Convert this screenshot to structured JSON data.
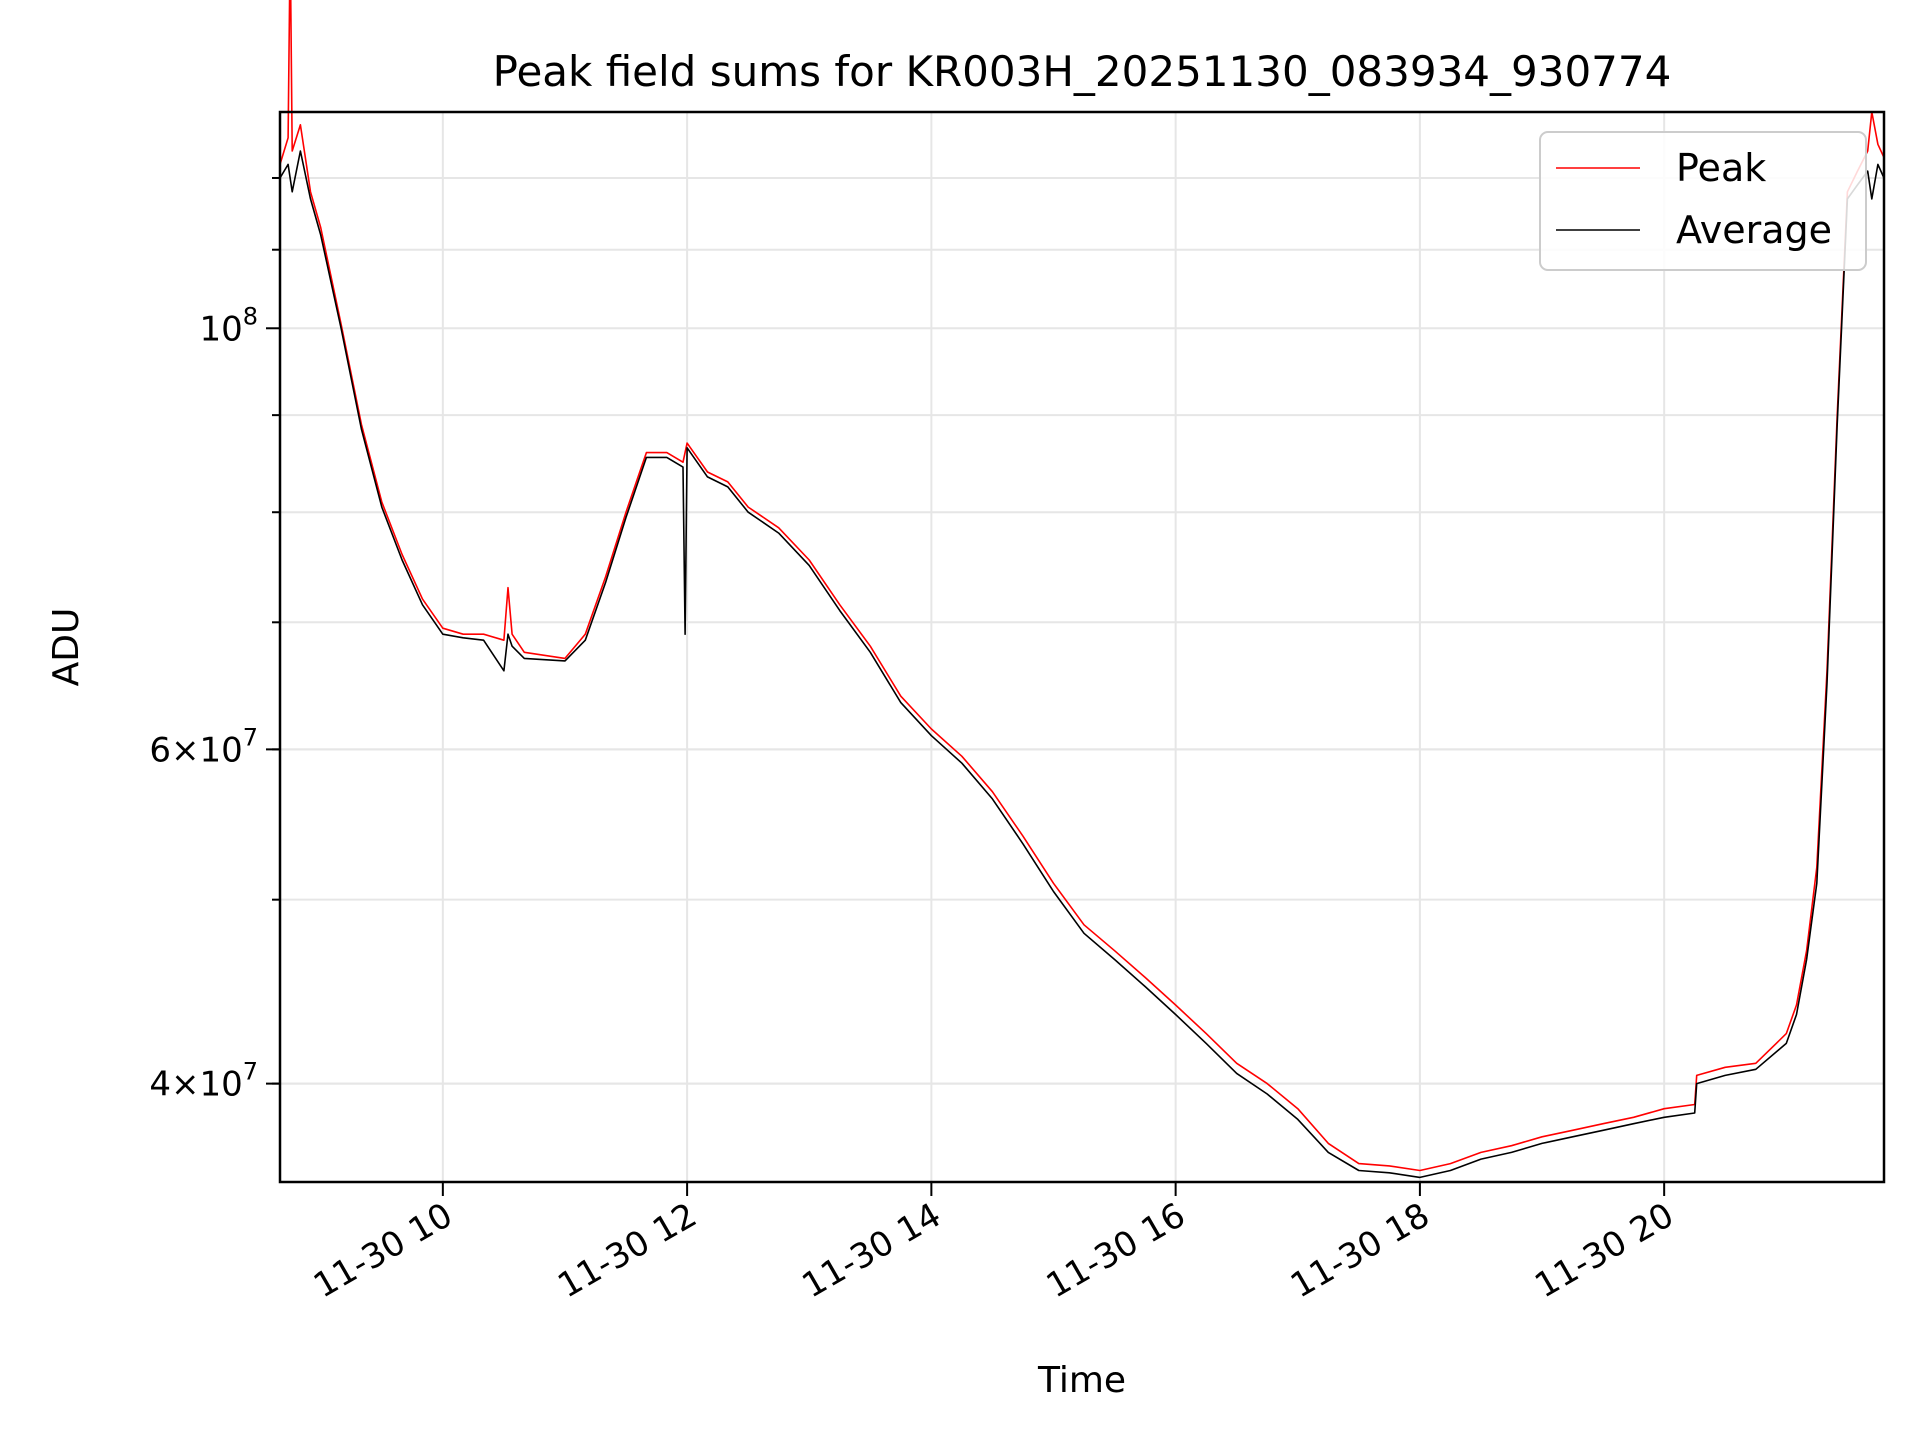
{
  "chart_data": {
    "type": "line",
    "title": "Peak field sums for KR003H_20251130_083934_930774",
    "xlabel": "Time",
    "ylabel": "ADU",
    "y_scale": "log",
    "x_range": [
      "11-30 08:40",
      "11-30 21:48"
    ],
    "ylim": [
      35500000,
      130000000
    ],
    "x_ticks": [
      "11-30 10",
      "11-30 12",
      "11-30 14",
      "11-30 16",
      "11-30 18",
      "11-30 20"
    ],
    "y_ticks": [
      {
        "value": 40000000,
        "mant": "4",
        "exp": "7"
      },
      {
        "value": 60000000,
        "mant": "6",
        "exp": "7"
      },
      {
        "value": 100000000,
        "mant": "10",
        "exp": "8"
      }
    ],
    "grid": true,
    "legend_position": "upper-right",
    "series": [
      {
        "name": "Peak",
        "color": "#ff0000",
        "points": [
          [
            "11-30 08:40",
            122000000
          ],
          [
            "11-30 08:44",
            126000000
          ],
          [
            "11-30 08:45",
            160000000
          ],
          [
            "11-30 08:46",
            124000000
          ],
          [
            "11-30 08:50",
            128000000
          ],
          [
            "11-30 08:55",
            118000000
          ],
          [
            "11-30 09:00",
            113000000
          ],
          [
            "11-30 09:10",
            100500000
          ],
          [
            "11-30 09:20",
            89000000
          ],
          [
            "11-30 09:30",
            81000000
          ],
          [
            "11-30 09:40",
            76000000
          ],
          [
            "11-30 09:50",
            72000000
          ],
          [
            "11-30 10:00",
            69500000
          ],
          [
            "11-30 10:10",
            69000000
          ],
          [
            "11-30 10:20",
            69000000
          ],
          [
            "11-30 10:30",
            68500000
          ],
          [
            "11-30 10:32",
            73000000
          ],
          [
            "11-30 10:34",
            69000000
          ],
          [
            "11-30 10:40",
            67500000
          ],
          [
            "11-30 11:00",
            67000000
          ],
          [
            "11-30 11:10",
            69000000
          ],
          [
            "11-30 11:20",
            74000000
          ],
          [
            "11-30 11:30",
            80000000
          ],
          [
            "11-30 11:40",
            86000000
          ],
          [
            "11-30 11:50",
            86000000
          ],
          [
            "11-30 11:58",
            85000000
          ],
          [
            "11-30 12:00",
            87000000
          ],
          [
            "11-30 12:10",
            84000000
          ],
          [
            "11-30 12:20",
            83000000
          ],
          [
            "11-30 12:30",
            80500000
          ],
          [
            "11-30 12:45",
            78500000
          ],
          [
            "11-30 13:00",
            75500000
          ],
          [
            "11-30 13:15",
            71500000
          ],
          [
            "11-30 13:30",
            68000000
          ],
          [
            "11-30 13:45",
            64000000
          ],
          [
            "11-30 14:00",
            61500000
          ],
          [
            "11-30 14:15",
            59500000
          ],
          [
            "11-30 14:30",
            57000000
          ],
          [
            "11-30 14:45",
            54000000
          ],
          [
            "11-30 15:00",
            51000000
          ],
          [
            "11-30 15:15",
            48500000
          ],
          [
            "11-30 15:30",
            47000000
          ],
          [
            "11-30 15:45",
            45500000
          ],
          [
            "11-30 16:00",
            44000000
          ],
          [
            "11-30 16:15",
            42500000
          ],
          [
            "11-30 16:30",
            41000000
          ],
          [
            "11-30 16:45",
            40000000
          ],
          [
            "11-30 17:00",
            38800000
          ],
          [
            "11-30 17:15",
            37200000
          ],
          [
            "11-30 17:30",
            36300000
          ],
          [
            "11-30 17:45",
            36200000
          ],
          [
            "11-30 18:00",
            36000000
          ],
          [
            "11-30 18:15",
            36300000
          ],
          [
            "11-30 18:30",
            36800000
          ],
          [
            "11-30 18:45",
            37100000
          ],
          [
            "11-30 19:00",
            37500000
          ],
          [
            "11-30 19:15",
            37800000
          ],
          [
            "11-30 19:30",
            38100000
          ],
          [
            "11-30 19:45",
            38400000
          ],
          [
            "11-30 20:00",
            38800000
          ],
          [
            "11-30 20:15",
            39000000
          ],
          [
            "11-30 20:16",
            40400000
          ],
          [
            "11-30 20:30",
            40800000
          ],
          [
            "11-30 20:45",
            41000000
          ],
          [
            "11-30 21:00",
            42500000
          ],
          [
            "11-30 21:05",
            44000000
          ],
          [
            "11-30 21:10",
            47000000
          ],
          [
            "11-30 21:15",
            52000000
          ],
          [
            "11-30 21:20",
            66000000
          ],
          [
            "11-30 21:25",
            90000000
          ],
          [
            "11-30 21:30",
            118000000
          ],
          [
            "11-30 21:35",
            121000000
          ],
          [
            "11-30 21:40",
            124000000
          ],
          [
            "11-30 21:42",
            130000000
          ],
          [
            "11-30 21:45",
            125000000
          ],
          [
            "11-30 21:48",
            123000000
          ]
        ]
      },
      {
        "name": "Average",
        "color": "#000000",
        "points": [
          [
            "11-30 08:40",
            120000000
          ],
          [
            "11-30 08:44",
            122000000
          ],
          [
            "11-30 08:46",
            118000000
          ],
          [
            "11-30 08:50",
            124000000
          ],
          [
            "11-30 08:55",
            117000000
          ],
          [
            "11-30 09:00",
            112000000
          ],
          [
            "11-30 09:10",
            100000000
          ],
          [
            "11-30 09:20",
            88500000
          ],
          [
            "11-30 09:30",
            80500000
          ],
          [
            "11-30 09:40",
            75500000
          ],
          [
            "11-30 09:50",
            71500000
          ],
          [
            "11-30 10:00",
            69000000
          ],
          [
            "11-30 10:10",
            68700000
          ],
          [
            "11-30 10:20",
            68500000
          ],
          [
            "11-30 10:30",
            66000000
          ],
          [
            "11-30 10:32",
            69000000
          ],
          [
            "11-30 10:34",
            68000000
          ],
          [
            "11-30 10:40",
            67000000
          ],
          [
            "11-30 11:00",
            66800000
          ],
          [
            "11-30 11:10",
            68500000
          ],
          [
            "11-30 11:20",
            73500000
          ],
          [
            "11-30 11:30",
            79500000
          ],
          [
            "11-30 11:40",
            85500000
          ],
          [
            "11-30 11:50",
            85500000
          ],
          [
            "11-30 11:58",
            84500000
          ],
          [
            "11-30 11:59",
            69000000
          ],
          [
            "11-30 12:00",
            86500000
          ],
          [
            "11-30 12:10",
            83500000
          ],
          [
            "11-30 12:20",
            82500000
          ],
          [
            "11-30 12:30",
            80000000
          ],
          [
            "11-30 12:45",
            78000000
          ],
          [
            "11-30 13:00",
            75000000
          ],
          [
            "11-30 13:15",
            71000000
          ],
          [
            "11-30 13:30",
            67500000
          ],
          [
            "11-30 13:45",
            63500000
          ],
          [
            "11-30 14:00",
            61000000
          ],
          [
            "11-30 14:15",
            59000000
          ],
          [
            "11-30 14:30",
            56500000
          ],
          [
            "11-30 14:45",
            53500000
          ],
          [
            "11-30 15:00",
            50500000
          ],
          [
            "11-30 15:15",
            48000000
          ],
          [
            "11-30 15:30",
            46500000
          ],
          [
            "11-30 15:45",
            45000000
          ],
          [
            "11-30 16:00",
            43500000
          ],
          [
            "11-30 16:15",
            42000000
          ],
          [
            "11-30 16:30",
            40500000
          ],
          [
            "11-30 16:45",
            39500000
          ],
          [
            "11-30 17:00",
            38300000
          ],
          [
            "11-30 17:15",
            36800000
          ],
          [
            "11-30 17:30",
            36000000
          ],
          [
            "11-30 17:45",
            35900000
          ],
          [
            "11-30 18:00",
            35700000
          ],
          [
            "11-30 18:15",
            36000000
          ],
          [
            "11-30 18:30",
            36500000
          ],
          [
            "11-30 18:45",
            36800000
          ],
          [
            "11-30 19:00",
            37200000
          ],
          [
            "11-30 19:15",
            37500000
          ],
          [
            "11-30 19:30",
            37800000
          ],
          [
            "11-30 19:45",
            38100000
          ],
          [
            "11-30 20:00",
            38400000
          ],
          [
            "11-30 20:15",
            38600000
          ],
          [
            "11-30 20:16",
            40000000
          ],
          [
            "11-30 20:30",
            40400000
          ],
          [
            "11-30 20:45",
            40700000
          ],
          [
            "11-30 21:00",
            42000000
          ],
          [
            "11-30 21:05",
            43500000
          ],
          [
            "11-30 21:10",
            46500000
          ],
          [
            "11-30 21:15",
            51000000
          ],
          [
            "11-30 21:20",
            65000000
          ],
          [
            "11-30 21:25",
            89000000
          ],
          [
            "11-30 21:30",
            117000000
          ],
          [
            "11-30 21:35",
            119000000
          ],
          [
            "11-30 21:40",
            121000000
          ],
          [
            "11-30 21:42",
            117000000
          ],
          [
            "11-30 21:45",
            122000000
          ],
          [
            "11-30 21:48",
            120000000
          ]
        ]
      }
    ]
  }
}
